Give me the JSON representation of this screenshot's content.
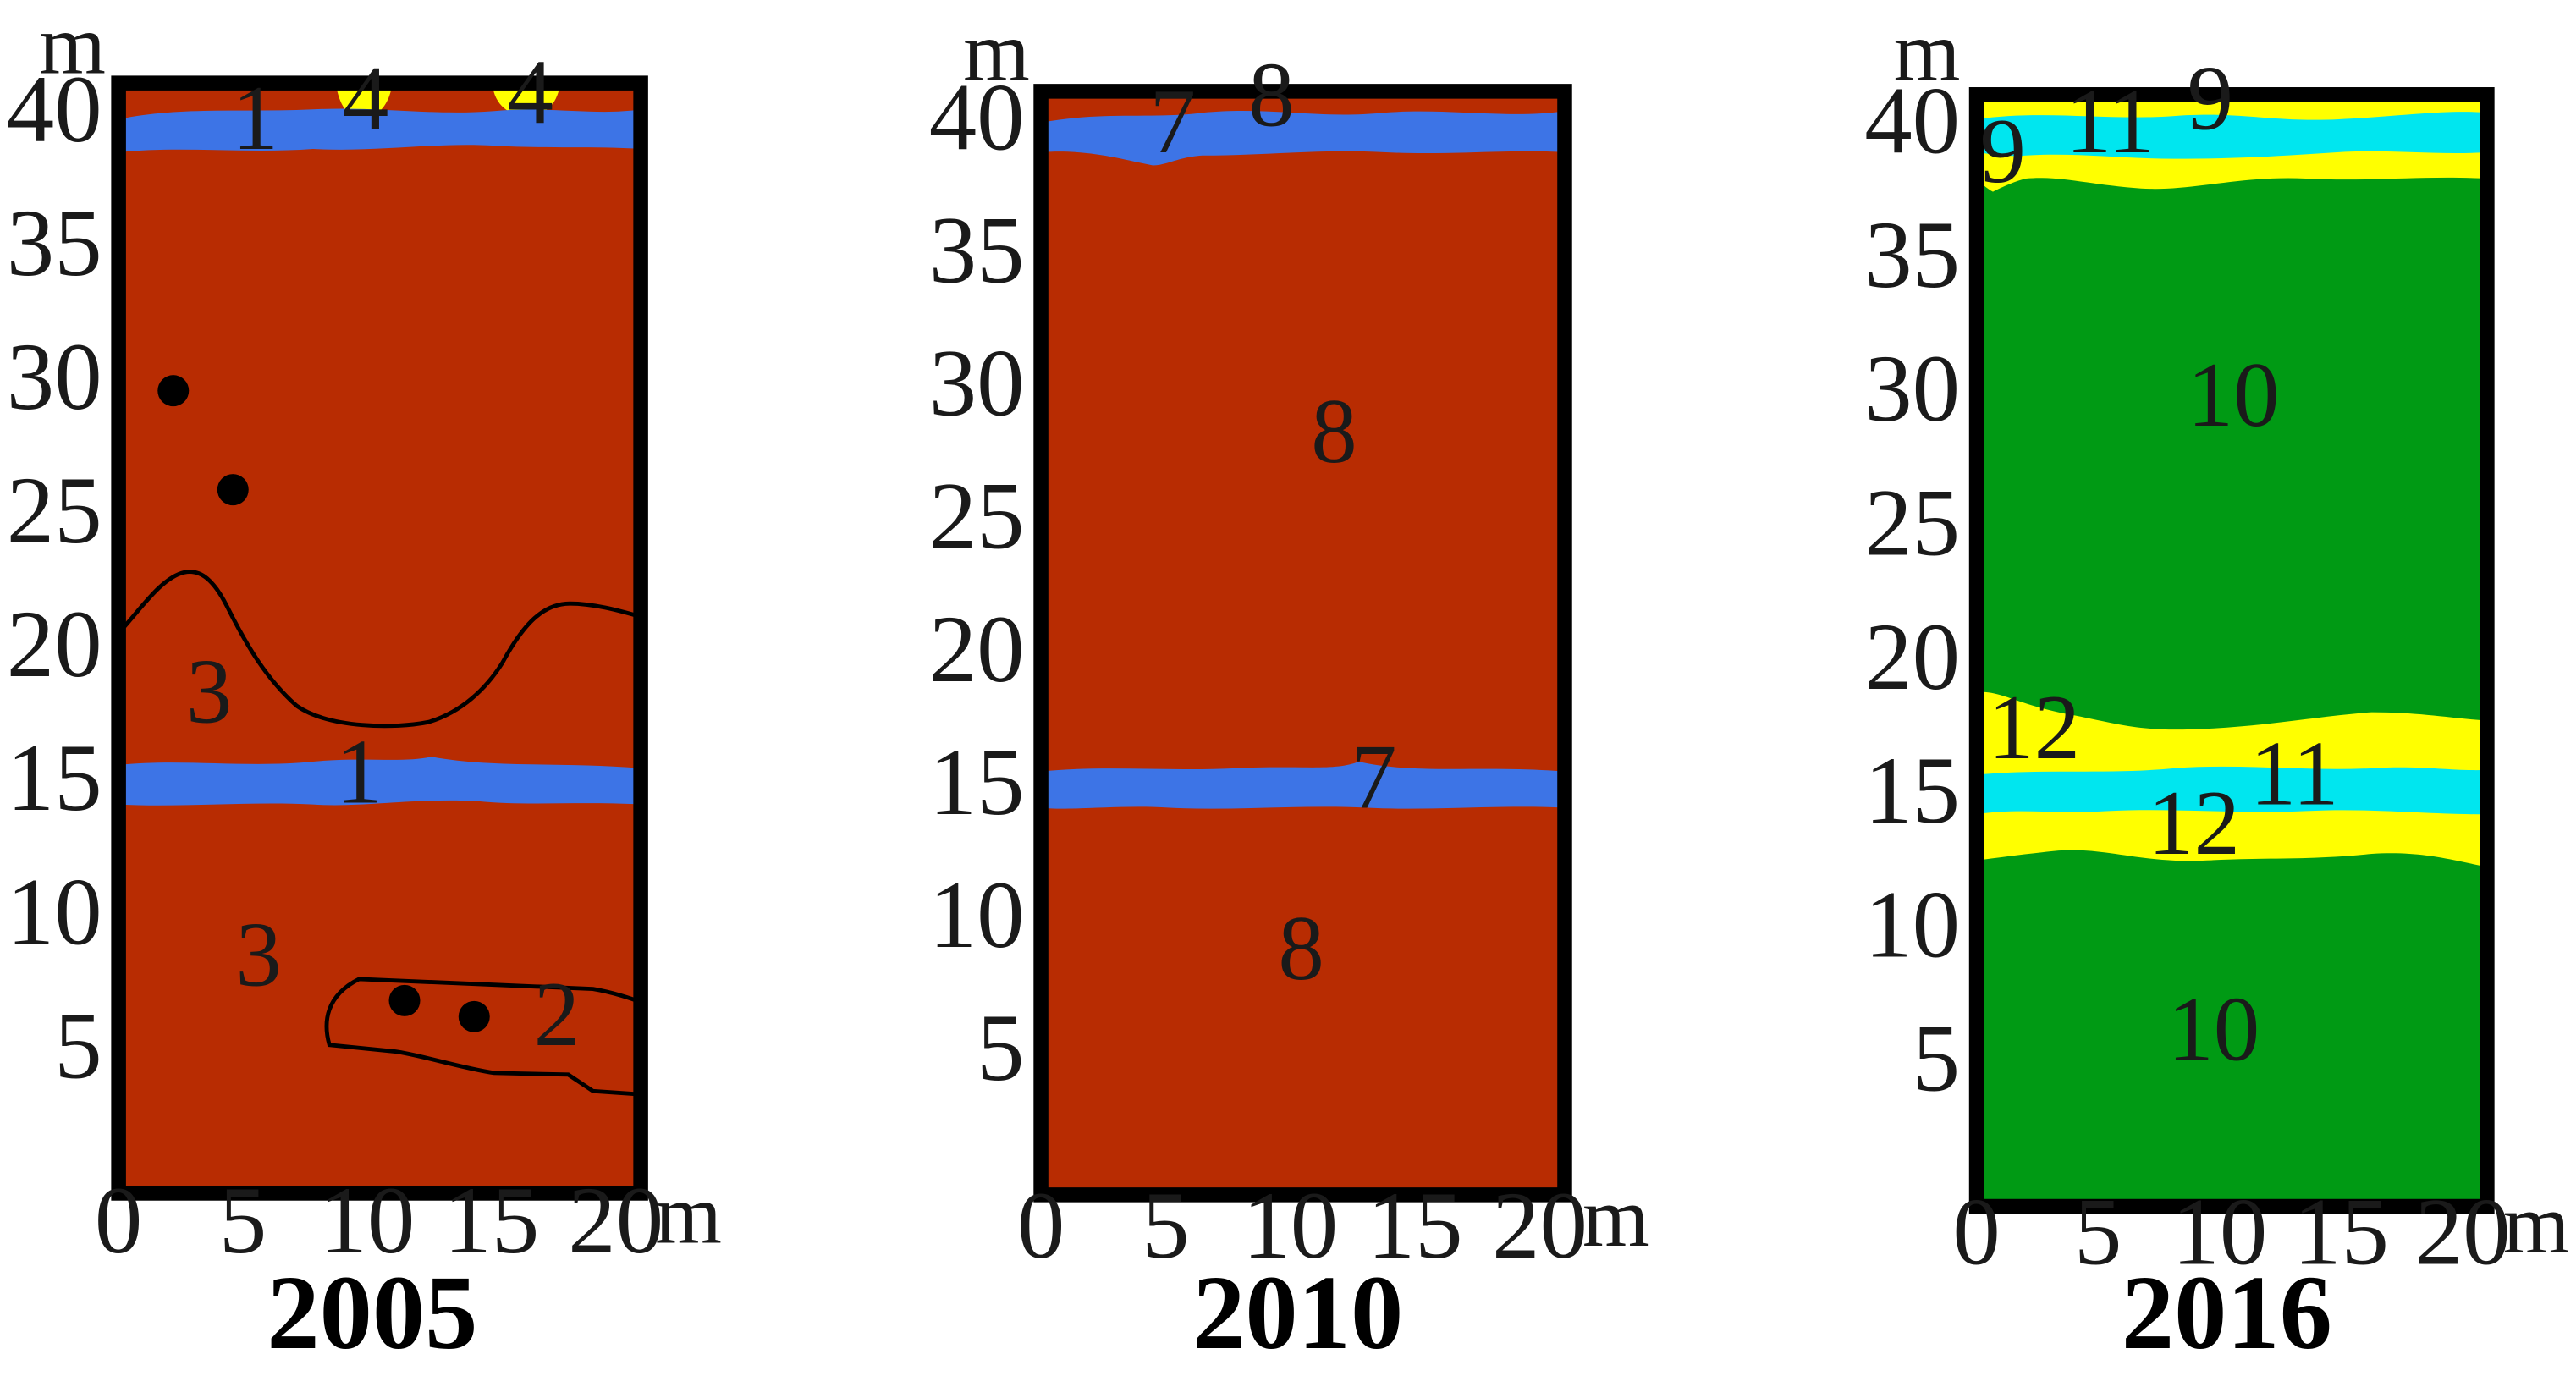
{
  "colors": {
    "brown": "#b82c02",
    "blue": "#3d74e6",
    "yellow": "#ffff00",
    "cyan": "#00e6ef",
    "green": "#009a14",
    "dot": "#000000"
  },
  "axes": {
    "y_unit": "m",
    "x_unit": "m",
    "y_ticks": [
      "40",
      "35",
      "30",
      "25",
      "20",
      "15",
      "10",
      "5"
    ],
    "x_ticks": [
      "0",
      "5",
      "10",
      "15",
      "20"
    ]
  },
  "panels": [
    {
      "year": "2005",
      "zones": [
        {
          "label": "1",
          "fill": "blue"
        },
        {
          "label": "2",
          "fill": "brown"
        },
        {
          "label": "3",
          "fill": "brown"
        },
        {
          "label": "4",
          "fill": "yellow"
        }
      ],
      "labels": [
        "1",
        "4",
        "4",
        "3",
        "1",
        "3",
        "2"
      ],
      "dots": [
        {
          "x": 2.2,
          "y": 30
        },
        {
          "x": 4.6,
          "y": 26.3
        },
        {
          "x": 11.5,
          "y": 7.2
        },
        {
          "x": 14.3,
          "y": 6.6
        }
      ]
    },
    {
      "year": "2010",
      "zones": [
        {
          "label": "7",
          "fill": "blue"
        },
        {
          "label": "8",
          "fill": "brown"
        }
      ],
      "labels": [
        "8",
        "7",
        "8",
        "7",
        "8"
      ]
    },
    {
      "year": "2016",
      "zones": [
        {
          "label": "9",
          "fill": "yellow"
        },
        {
          "label": "10",
          "fill": "green"
        },
        {
          "label": "11",
          "fill": "cyan"
        },
        {
          "label": "12",
          "fill": "yellow"
        }
      ],
      "labels": [
        "9",
        "11",
        "9",
        "10",
        "12",
        "11",
        "12",
        "10"
      ]
    }
  ]
}
